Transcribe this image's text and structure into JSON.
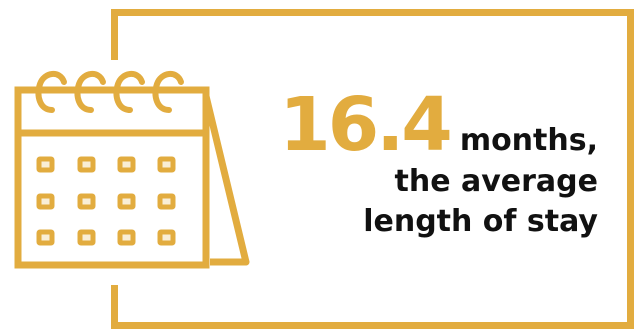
{
  "stat": {
    "value": "16.4",
    "unit": "months,",
    "line2": "the average",
    "line3": "length of stay"
  },
  "colors": {
    "accent": "#e2ac3f",
    "text": "#111111",
    "background": "#ffffff"
  },
  "icons": [
    "calendar-icon"
  ]
}
